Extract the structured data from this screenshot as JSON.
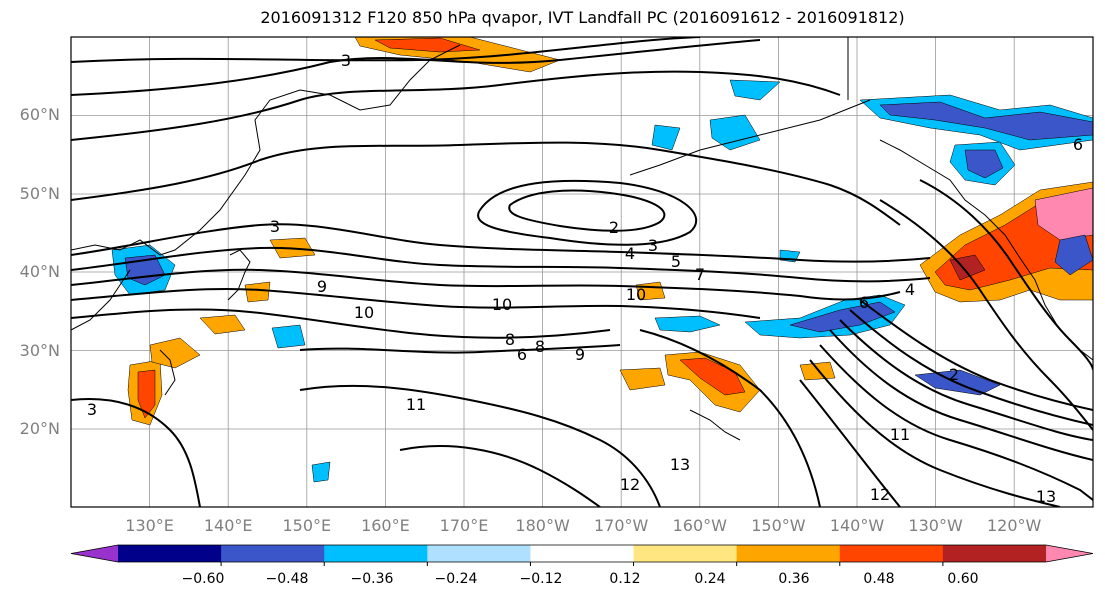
{
  "title": "2016091312 F120 850 hPa qvapor, IVT Landfall PC (2016091612 - 2016091812)",
  "map": {
    "lat_labels": [
      "60°N",
      "50°N",
      "40°N",
      "30°N",
      "20°N"
    ],
    "lat_values": [
      60,
      50,
      40,
      30,
      20
    ],
    "lon_labels": [
      "130°E",
      "140°E",
      "150°E",
      "160°E",
      "170°E",
      "180°W",
      "170°W",
      "160°W",
      "150°W",
      "140°W",
      "130°W",
      "120°W"
    ],
    "lon_values": [
      130,
      140,
      150,
      160,
      170,
      180,
      190,
      200,
      210,
      220,
      230,
      240
    ],
    "lat_range": [
      10,
      70
    ],
    "lon_range": [
      120,
      250
    ],
    "contour_labels": [
      "3",
      "3",
      "2",
      "3",
      "4",
      "5",
      "7",
      "9",
      "10",
      "10",
      "10",
      "8",
      "6",
      "8",
      "9",
      "6",
      "11",
      "11",
      "12",
      "13",
      "12",
      "13",
      "2",
      "3",
      "4",
      "6"
    ]
  },
  "colorbar": {
    "tick_labels": [
      "−0.60",
      "−0.48",
      "−0.36",
      "−0.24",
      "−0.12",
      "0.12",
      "0.24",
      "0.36",
      "0.48",
      "0.60"
    ],
    "levels": [
      -0.72,
      -0.6,
      -0.48,
      -0.36,
      -0.24,
      -0.12,
      0.12,
      0.24,
      0.36,
      0.48,
      0.6
    ],
    "colors": [
      "#9932cc",
      "#00008b",
      "#3a56c8",
      "#00bfff",
      "#b0e0ff",
      "#ffffff",
      "#ffe680",
      "#ffa500",
      "#ff4500",
      "#b22222",
      "#ff88b0"
    ],
    "extend": "both"
  }
}
